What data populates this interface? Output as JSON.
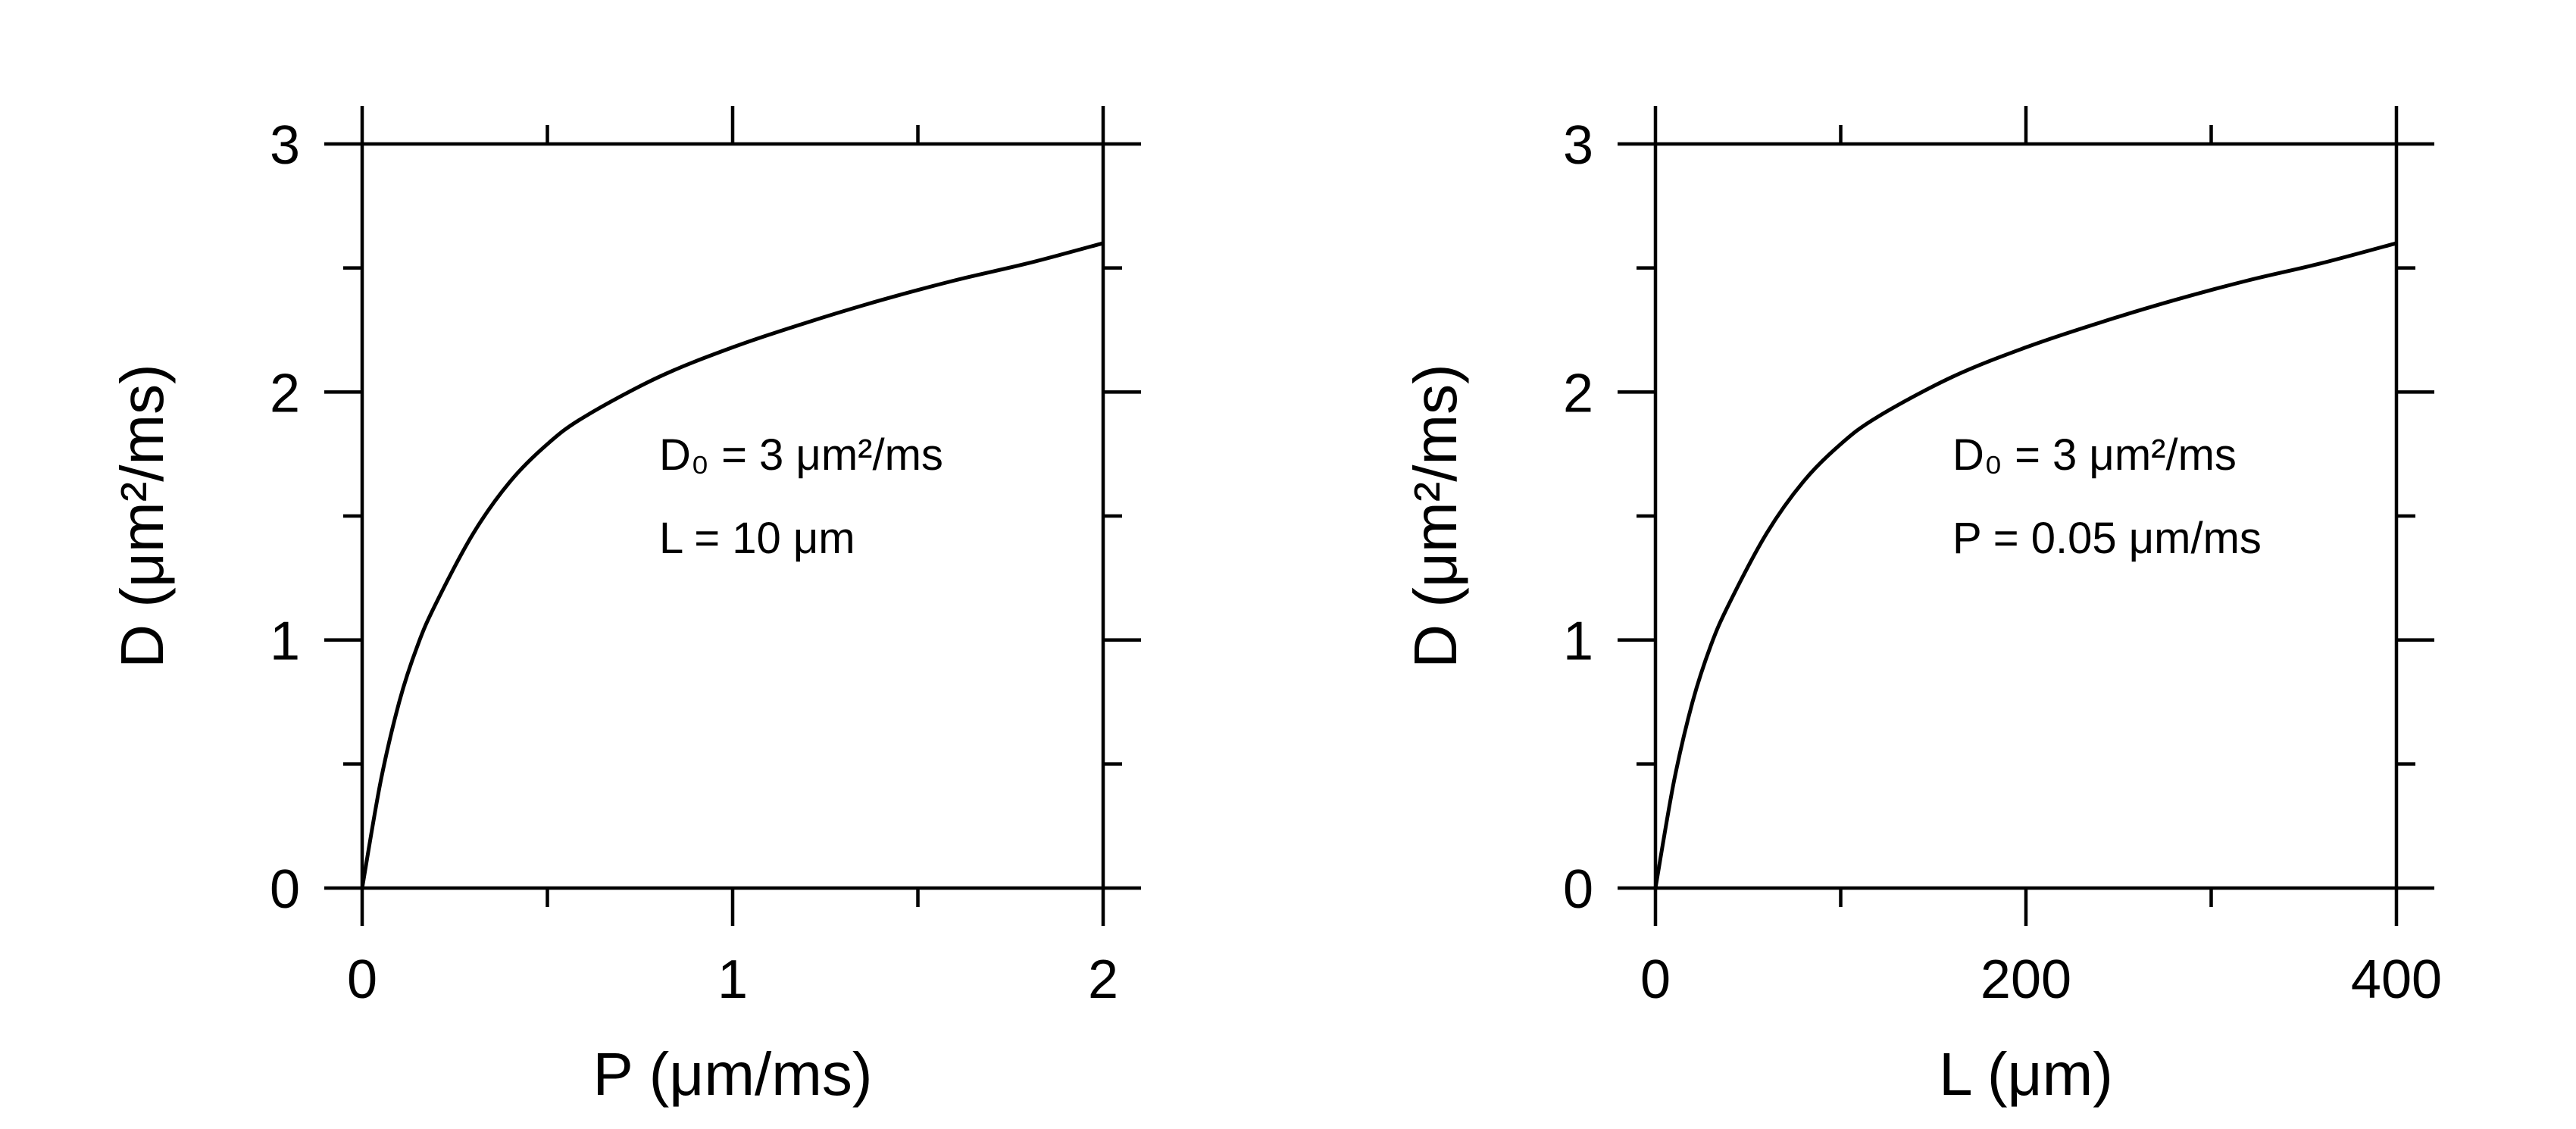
{
  "chart_data": [
    {
      "type": "line",
      "xlabel": "P (μm/ms)",
      "ylabel": "D (μm²/ms)",
      "xlim": [
        0,
        2
      ],
      "ylim": [
        0,
        3
      ],
      "xticks": [
        {
          "value": 0,
          "label": "0"
        },
        {
          "value": 1,
          "label": "1"
        },
        {
          "value": 2,
          "label": "2"
        }
      ],
      "yticks": [
        {
          "value": 0,
          "label": "0"
        },
        {
          "value": 1,
          "label": "1"
        },
        {
          "value": 2,
          "label": "2"
        },
        {
          "value": 3,
          "label": "3"
        }
      ],
      "annotations": [
        "D₀ = 3 μm²/ms",
        "L = 10 μm"
      ],
      "grid": false,
      "series": [
        {
          "x": [
            0,
            0.05,
            0.1,
            0.15,
            0.2,
            0.3,
            0.4,
            0.5,
            0.6,
            0.8,
            1.0,
            1.2,
            1.4,
            1.6,
            1.8,
            2.0
          ],
          "y": [
            0,
            0.43,
            0.75,
            0.98,
            1.15,
            1.43,
            1.64,
            1.79,
            1.9,
            2.06,
            2.18,
            2.28,
            2.37,
            2.45,
            2.52,
            2.6
          ]
        }
      ]
    },
    {
      "type": "line",
      "xlabel": "L (μm)",
      "ylabel": "D (μm²/ms)",
      "xlim": [
        0,
        400
      ],
      "ylim": [
        0,
        3
      ],
      "xticks": [
        {
          "value": 0,
          "label": "0"
        },
        {
          "value": 200,
          "label": "200"
        },
        {
          "value": 400,
          "label": "400"
        }
      ],
      "yticks": [
        {
          "value": 0,
          "label": "0"
        },
        {
          "value": 1,
          "label": "1"
        },
        {
          "value": 2,
          "label": "2"
        },
        {
          "value": 3,
          "label": "3"
        }
      ],
      "annotations": [
        "D₀ = 3 μm²/ms",
        "P = 0.05 μm/ms"
      ],
      "grid": false,
      "series": [
        {
          "x": [
            0,
            10,
            20,
            30,
            40,
            60,
            80,
            100,
            120,
            160,
            200,
            240,
            280,
            320,
            360,
            400
          ],
          "y": [
            0,
            0.43,
            0.75,
            0.98,
            1.15,
            1.43,
            1.64,
            1.79,
            1.9,
            2.06,
            2.18,
            2.28,
            2.37,
            2.45,
            2.52,
            2.6
          ]
        }
      ]
    }
  ]
}
